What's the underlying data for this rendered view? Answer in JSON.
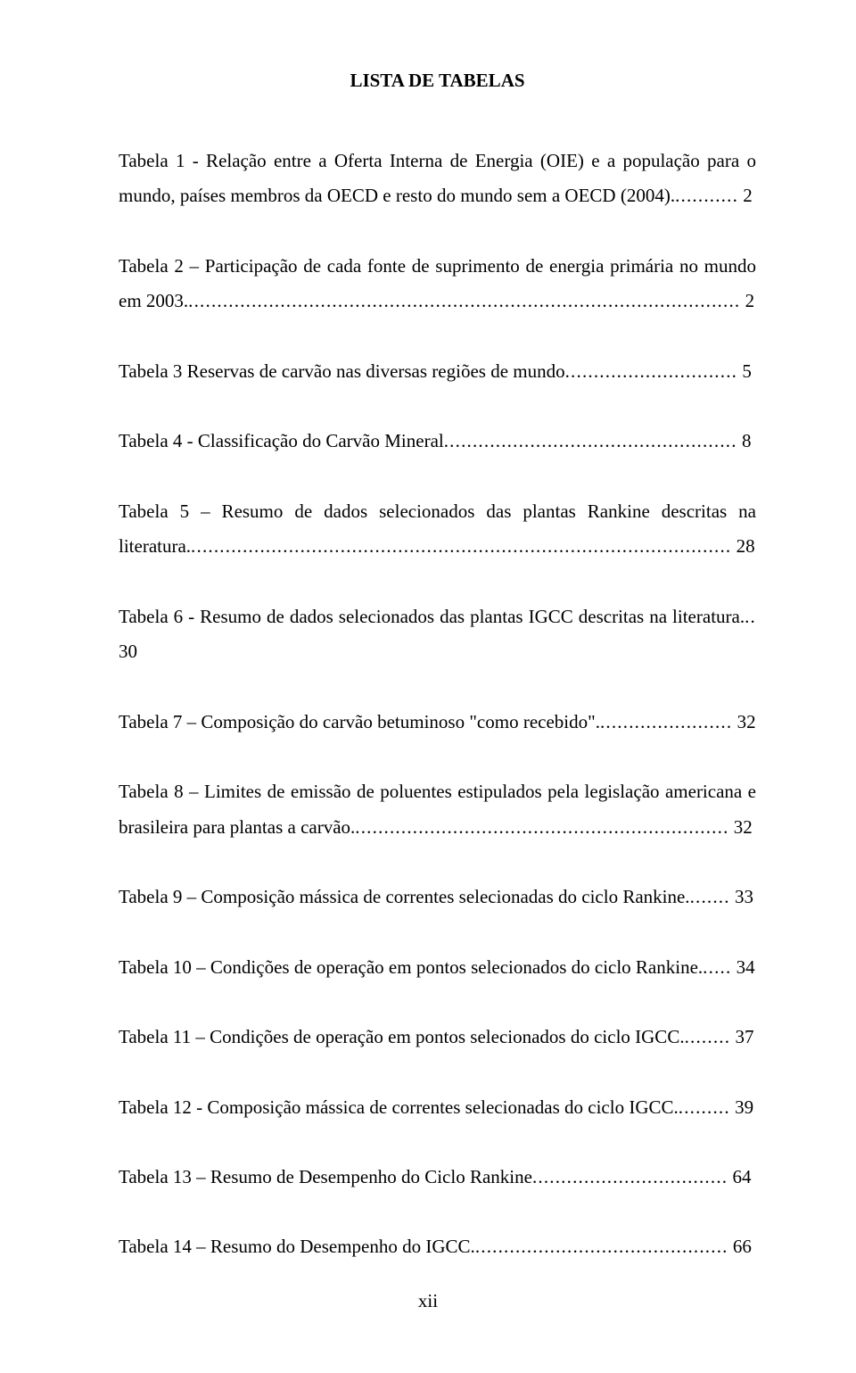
{
  "title": "LISTA DE TABELAS",
  "page_number": "xii",
  "entries": [
    {
      "text": "Tabela 1 - Relação entre a Oferta Interna de Energia (OIE) e a população para o mundo, países membros  da OECD e resto do mundo sem a OECD (2004).",
      "page": "2"
    },
    {
      "text": "Tabela 2 – Participação de cada fonte de suprimento de energia primária no mundo em 2003.",
      "page": "2"
    },
    {
      "text": "Tabela 3 Reservas de carvão nas diversas regiões de mundo",
      "page": "5"
    },
    {
      "text": "Tabela 4 - Classificação do Carvão Mineral",
      "page": "8"
    },
    {
      "text": "Tabela 5 – Resumo de dados selecionados das plantas Rankine descritas na literatura.",
      "page": "28"
    },
    {
      "text": "Tabela 6 - Resumo de dados selecionados das plantas IGCC descritas na literatura.",
      "page": "30"
    },
    {
      "text": "Tabela 7 – Composição do carvão betuminoso \"como recebido\".",
      "page": "32"
    },
    {
      "text": "Tabela 8 – Limites de emissão de poluentes estipulados pela legislação americana e brasileira para plantas a carvão.",
      "page": "32"
    },
    {
      "text": "Tabela 9 – Composição mássica de correntes selecionadas do ciclo Rankine.",
      "page": "33"
    },
    {
      "text": "Tabela 10  – Condições de operação em pontos selecionados do ciclo Rankine.",
      "page": "34"
    },
    {
      "text": "Tabela 11 – Condições de operação em pontos selecionados do ciclo IGCC.",
      "page": "37"
    },
    {
      "text": "Tabela 12 - Composição mássica de correntes selecionadas do ciclo IGCC.",
      "page": "39"
    },
    {
      "text": "Tabela 13 – Resumo de Desempenho do Ciclo Rankine",
      "page": "64"
    },
    {
      "text": "Tabela 14 – Resumo do Desempenho do IGCC.",
      "page": "66"
    }
  ]
}
